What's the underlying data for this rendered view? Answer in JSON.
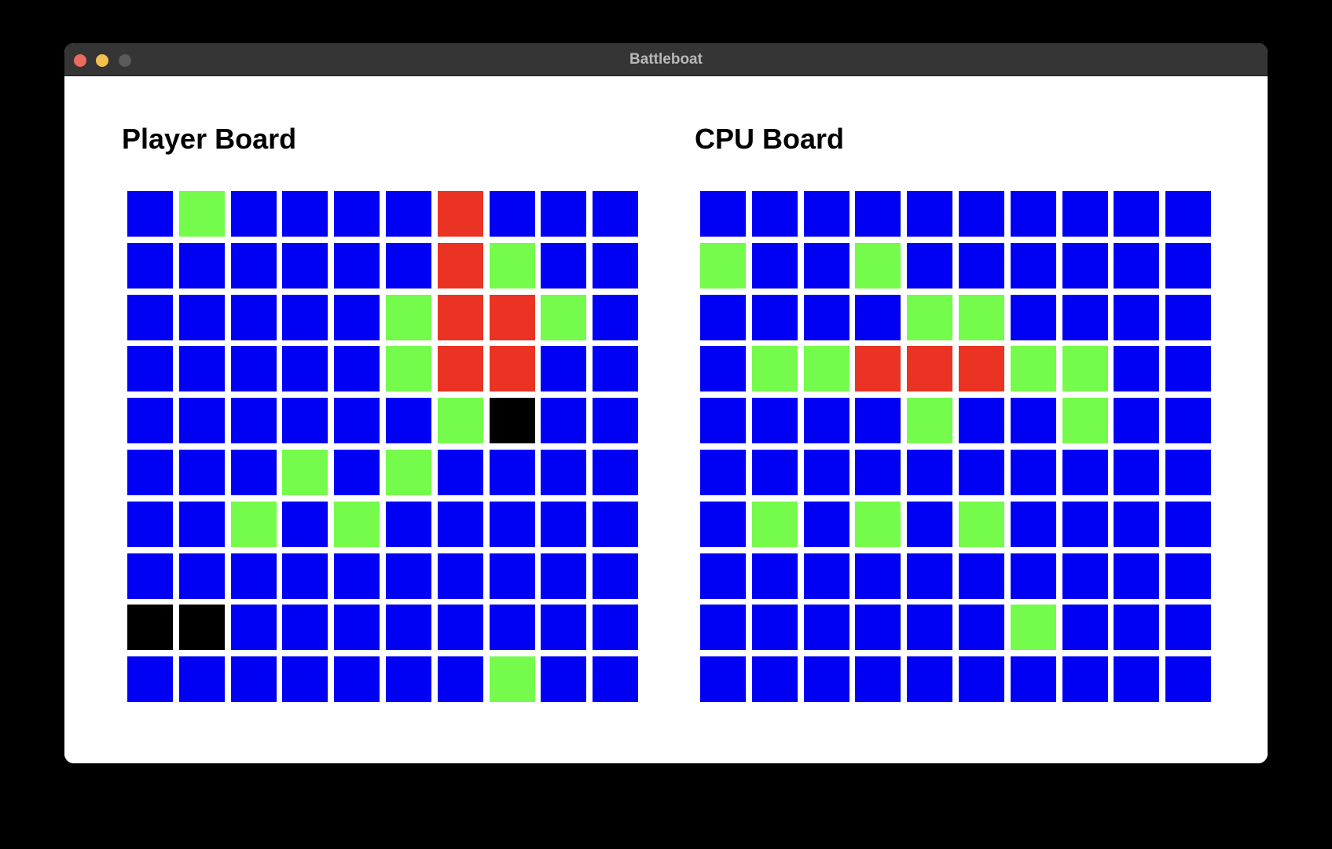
{
  "window": {
    "title": "Battleboat",
    "traffic_lights": {
      "close": "#ed6a5e",
      "minimize": "#f5bf4f",
      "maximize": "#5a5a5a"
    }
  },
  "legend_colors": {
    "water": "#0000f5",
    "miss": "#75fb4c",
    "hit": "#ea3323",
    "ship": "#000000"
  },
  "boards": [
    {
      "title": "Player Board",
      "grid": [
        "WMWWWWHWWW",
        "WWWWWWHMWW",
        "WWWWWMHHMW",
        "WWWWWMHHWW",
        "WWWWWWMSWW",
        "WWWMWMWWWW",
        "WWMWMWWWWW",
        "WWWWWWWWWW",
        "SSWWWWWWWW",
        "WWWWWWWMWW"
      ]
    },
    {
      "title": "CPU Board",
      "grid": [
        "WWWWWWWWWW",
        "MWWMWWWWWW",
        "WWWWMMWWWW",
        "WMMHHHMMWW",
        "WWWWMWWMWW",
        "WWWWWWWWWW",
        "WMWMWMWWWW",
        "WWWWWWWWWW",
        "WWWWWWMWWW",
        "WWWWWWWWWW"
      ]
    }
  ]
}
